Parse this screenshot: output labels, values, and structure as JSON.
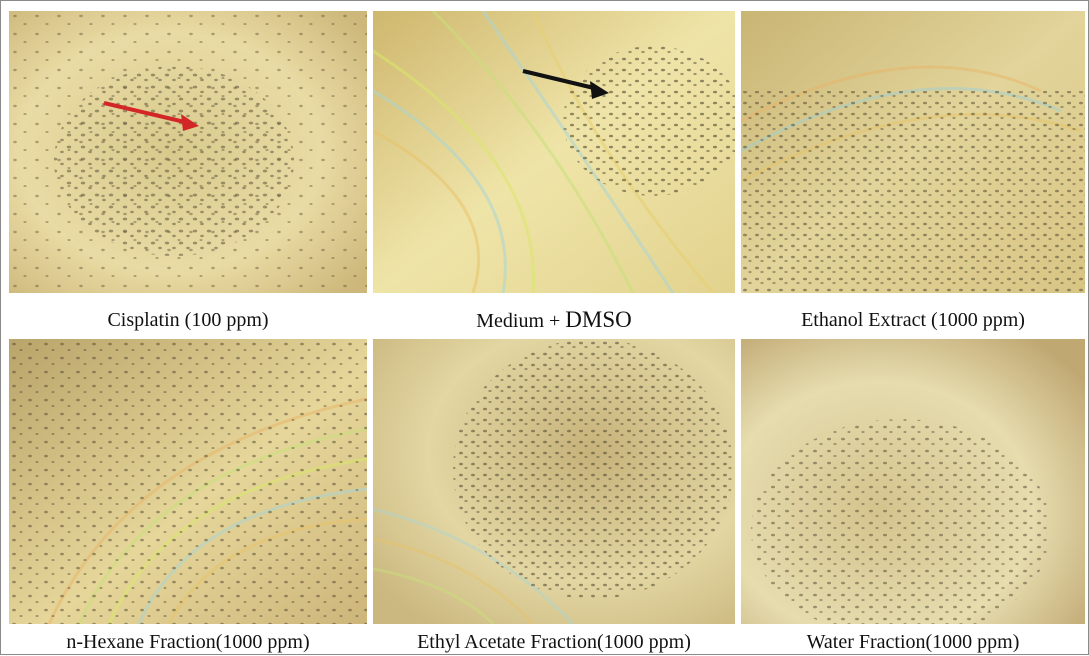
{
  "panels": [
    {
      "caption": "Cisplatin (100 ppm)",
      "arrow": "red",
      "fringe": "low"
    },
    {
      "caption_main": "Medium + ",
      "caption_tail": "DMSO",
      "arrow": "black",
      "fringe": "high"
    },
    {
      "caption": "Ethanol Extract (1000 ppm)",
      "arrow": "none",
      "fringe": "medium"
    },
    {
      "caption": "n-Hexane Fraction(1000 ppm)",
      "arrow": "none",
      "fringe": "high"
    },
    {
      "caption": "Ethyl Acetate Fraction(1000 ppm)",
      "arrow": "none",
      "fringe": "medium"
    },
    {
      "caption": "Water Fraction(1000 ppm)",
      "arrow": "none",
      "fringe": "low"
    }
  ],
  "colors": {
    "red_arrow": "#d32626",
    "black_arrow": "#111111",
    "tint_light": "#efe4b0",
    "tint_dark": "#a8925c"
  }
}
